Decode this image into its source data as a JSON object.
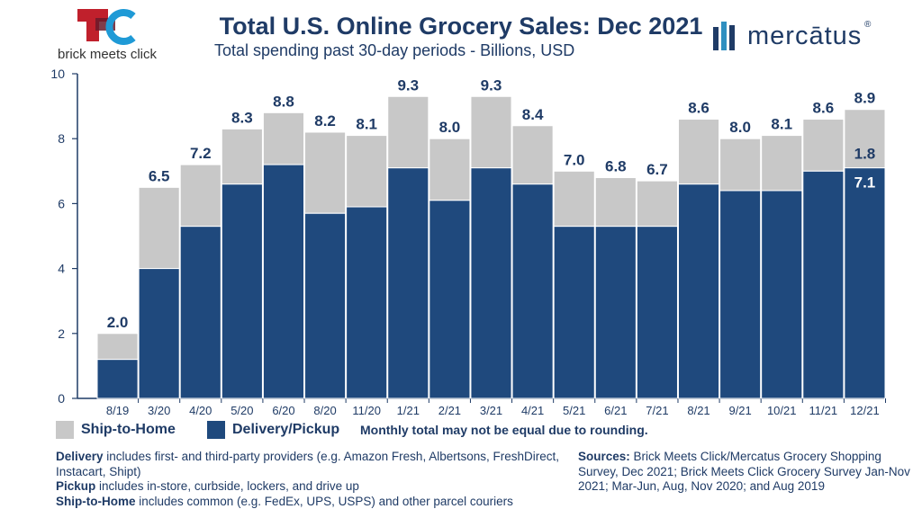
{
  "header": {
    "title": "Total U.S. Online Grocery Sales: Dec 2021",
    "subtitle": "Total spending past 30-day periods - Billions, USD",
    "left_logo_text": "brick meets click",
    "right_logo_text": "mercātus"
  },
  "colors": {
    "ship_to_home": "#c8c8c8",
    "delivery_pickup": "#1f497d",
    "text": "#1f3b66"
  },
  "chart_data": {
    "type": "bar",
    "stacked": true,
    "categories": [
      "8/19",
      "3/20",
      "4/20",
      "5/20",
      "6/20",
      "8/20",
      "11/20",
      "1/21",
      "2/21",
      "3/21",
      "4/21",
      "5/21",
      "6/21",
      "7/21",
      "8/21",
      "9/21",
      "10/21",
      "11/21",
      "12/21"
    ],
    "series": [
      {
        "name": "Delivery/Pickup",
        "values": [
          1.2,
          4.0,
          5.3,
          6.6,
          7.2,
          5.7,
          5.9,
          7.1,
          6.1,
          7.1,
          6.6,
          5.3,
          5.3,
          5.3,
          6.6,
          6.4,
          6.4,
          7.0,
          7.1
        ]
      },
      {
        "name": "Ship-to-Home",
        "values": [
          0.8,
          2.5,
          1.9,
          1.7,
          1.6,
          2.5,
          2.2,
          2.2,
          1.9,
          2.2,
          1.8,
          1.7,
          1.5,
          1.4,
          2.0,
          1.6,
          1.7,
          1.6,
          1.8
        ]
      }
    ],
    "totals": [
      "2.0",
      "6.5",
      "7.2",
      "8.3",
      "8.8",
      "8.2",
      "8.1",
      "9.3",
      "8.0",
      "9.3",
      "8.4",
      "7.0",
      "6.8",
      "6.7",
      "8.6",
      "8.0",
      "8.1",
      "8.6",
      "8.9"
    ],
    "last_bar_labels": {
      "ship_to_home": "1.8",
      "delivery_pickup": "7.1"
    },
    "ylim": [
      0,
      10
    ],
    "yticks": [
      "0",
      "2",
      "4",
      "6",
      "8",
      "10"
    ],
    "legend_position": "bottom-left"
  },
  "legend": {
    "ship_to_home": "Ship-to-Home",
    "delivery_pickup": "Delivery/Pickup",
    "note": "Monthly total may not be equal due to rounding."
  },
  "notes": {
    "delivery_term": "Delivery",
    "delivery_text": " includes first- and third-party providers (e.g. Amazon Fresh, Albertsons, FreshDirect, Instacart, Shipt)",
    "pickup_term": "Pickup",
    "pickup_text": " includes in-store, curbside, lockers, and drive up",
    "ship_term": "Ship-to-Home",
    "ship_text": " includes common (e.g. FedEx, UPS, USPS) and other parcel couriers"
  },
  "sources": {
    "term": "Sources:",
    "text": " Brick Meets Click/Mercatus Grocery Shopping Survey, Dec 2021; Brick Meets Click Grocery Survey Jan-Nov 2021; Mar-Jun, Aug, Nov 2020; and Aug 2019"
  }
}
